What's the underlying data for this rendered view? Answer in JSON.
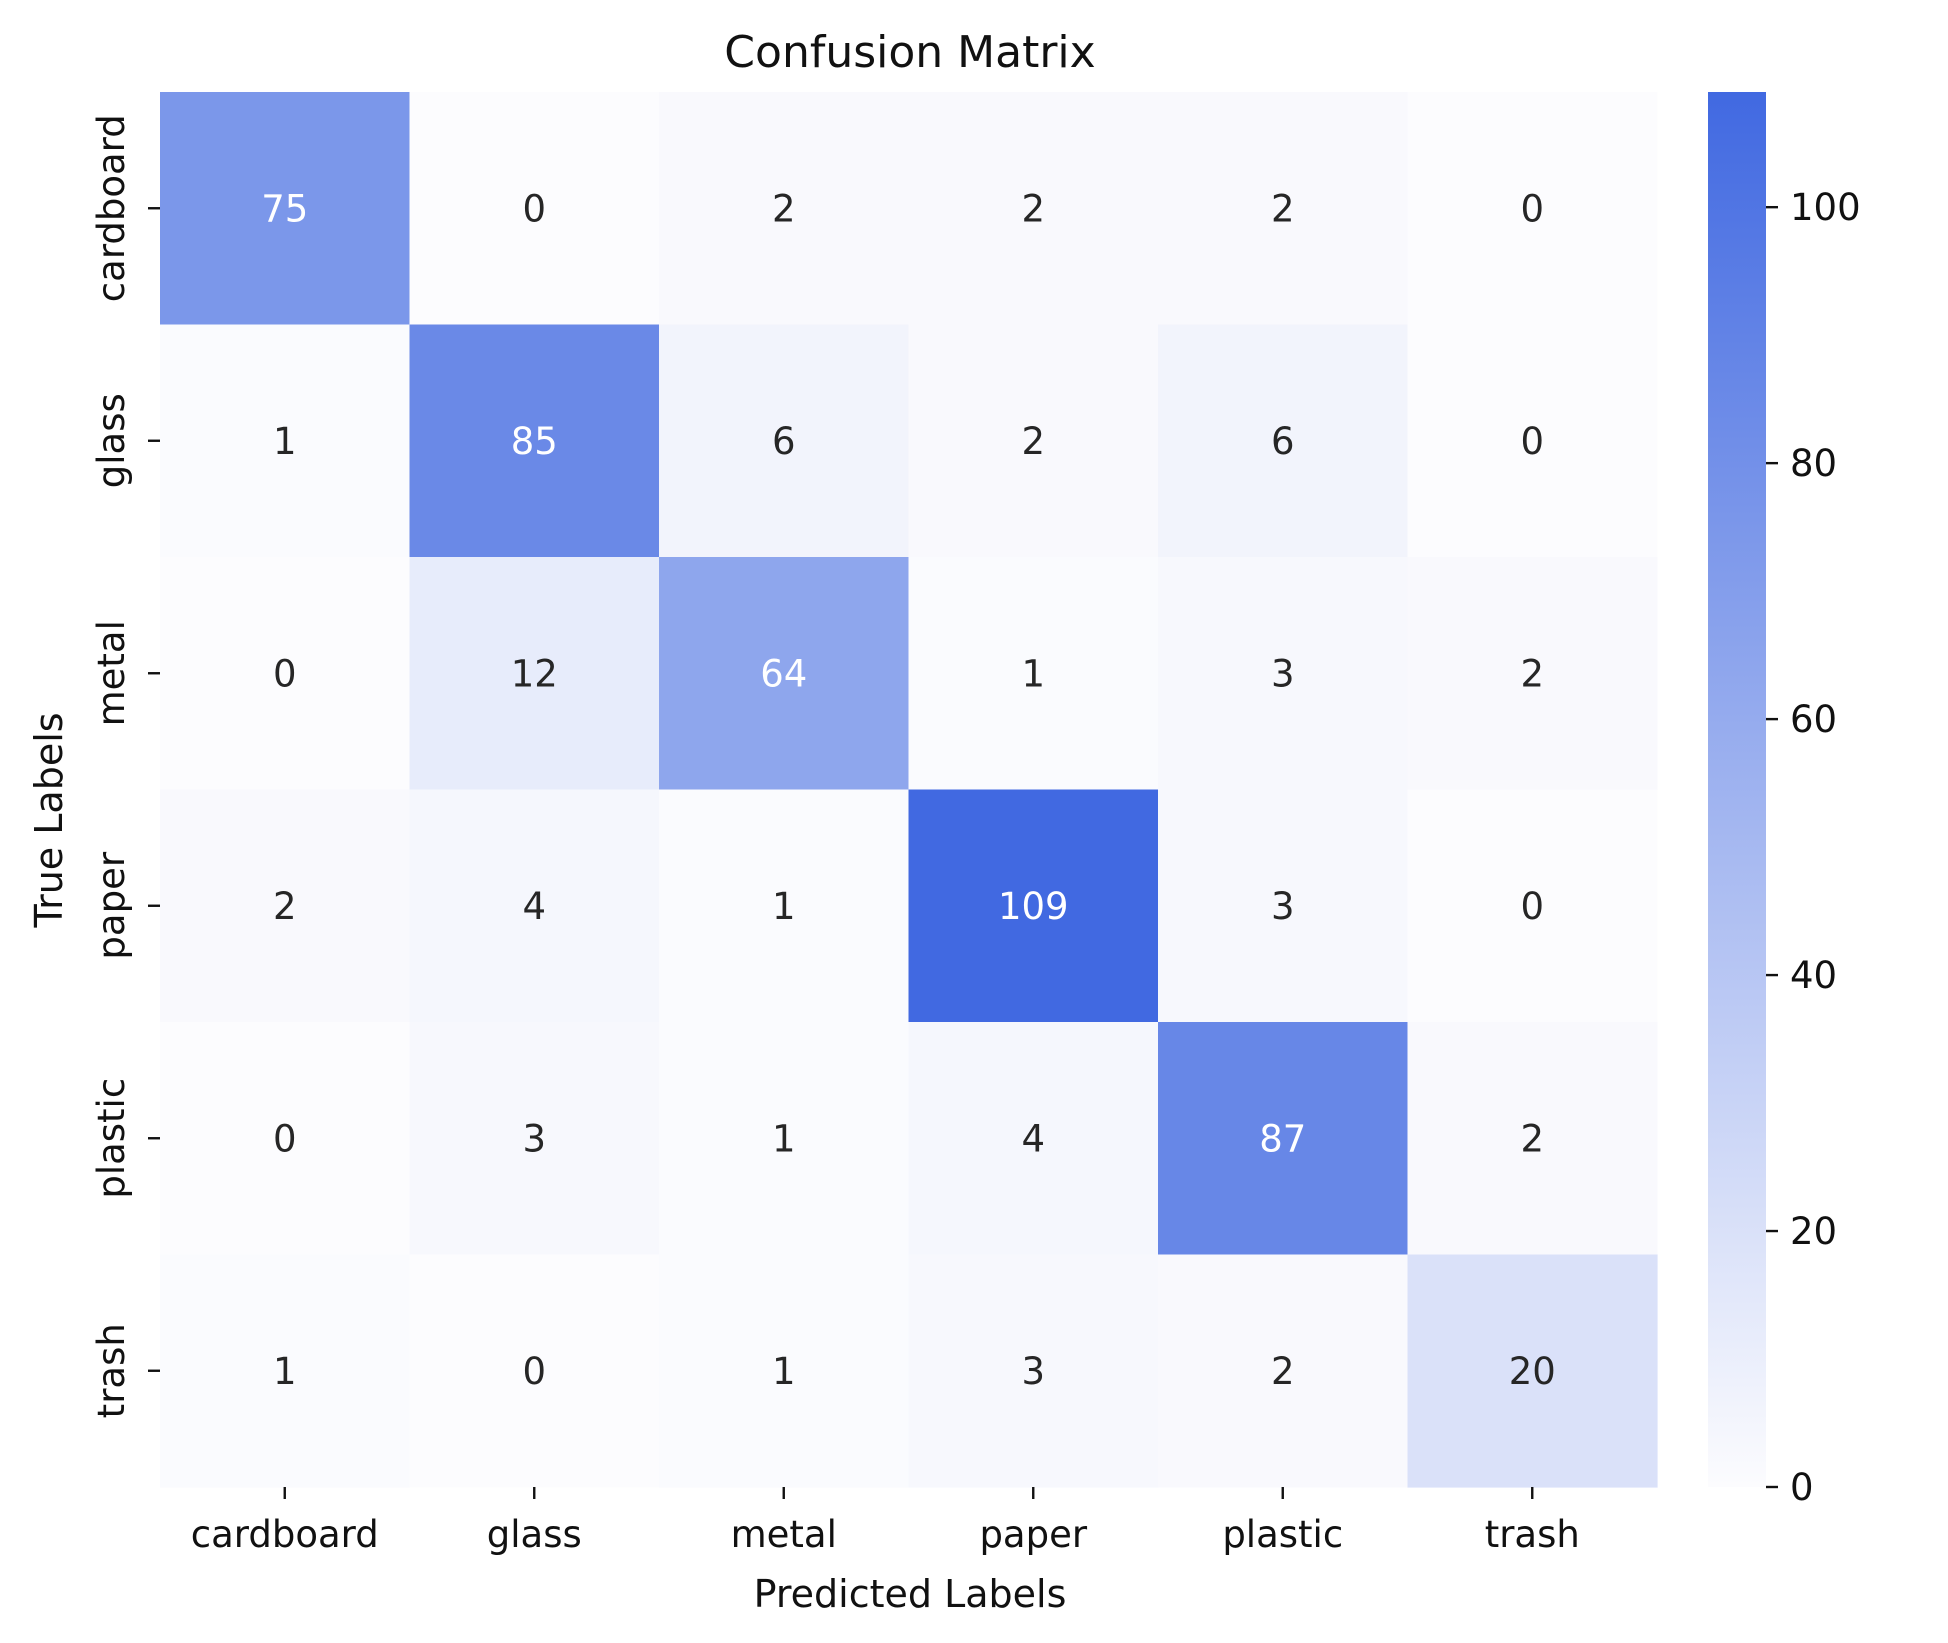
{
  "chart_data": {
    "type": "heatmap",
    "title": "Confusion Matrix",
    "xlabel": "Predicted Labels",
    "ylabel": "True Labels",
    "x_categories": [
      "cardboard",
      "glass",
      "metal",
      "paper",
      "plastic",
      "trash"
    ],
    "y_categories": [
      "cardboard",
      "glass",
      "metal",
      "paper",
      "plastic",
      "trash"
    ],
    "values": [
      [
        75,
        0,
        2,
        2,
        2,
        0
      ],
      [
        1,
        85,
        6,
        2,
        6,
        0
      ],
      [
        0,
        12,
        64,
        1,
        3,
        2
      ],
      [
        2,
        4,
        1,
        109,
        3,
        0
      ],
      [
        0,
        3,
        1,
        4,
        87,
        2
      ],
      [
        1,
        0,
        1,
        3,
        2,
        20
      ]
    ],
    "color_min": 0,
    "color_max": 109,
    "colormap": {
      "low": "#fcfcfe",
      "high": "#4169e1"
    },
    "text_colors": {
      "dark": "#262626",
      "light": "#ffffff"
    },
    "colorbar": {
      "ticks": [
        0,
        20,
        40,
        60,
        80,
        100
      ],
      "tick_labels": [
        "0",
        "20",
        "40",
        "60",
        "80",
        "100"
      ]
    },
    "grid": false,
    "legend": "colorbar-right"
  }
}
